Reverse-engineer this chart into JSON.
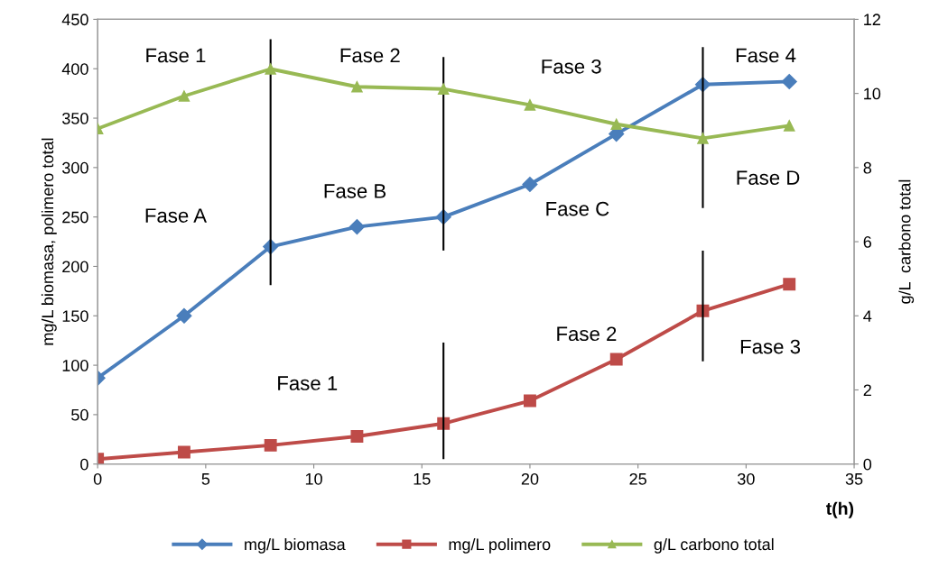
{
  "chart_data": {
    "type": "line",
    "xlabel": "t(h)",
    "ylabel": "mg/L biomasa, polimero total",
    "y2label": "g/L  carbono total",
    "x": [
      0,
      4,
      8,
      12,
      16,
      20,
      24,
      28,
      32
    ],
    "series": [
      {
        "name": "mg/L biomasa",
        "color": "#4a7ebb",
        "marker": "diamond",
        "values": [
          87,
          150,
          220,
          240,
          250,
          283,
          334,
          384,
          387
        ]
      },
      {
        "name": "mg/L polimero",
        "color": "#be4b48",
        "marker": "square",
        "values": [
          5,
          12,
          19,
          28,
          41,
          64,
          106,
          155,
          182
        ]
      },
      {
        "name": "g/L carbono total",
        "color": "#98b954",
        "marker": "triangle",
        "axis": "y2",
        "values": [
          9.05,
          9.93,
          10.66,
          10.18,
          10.12,
          9.69,
          9.17,
          8.79,
          9.13
        ]
      },
      {
        "type": "line",
        "color": "#000000",
        "marker": "none",
        "x": [
          8,
          8
        ],
        "values": [
          182,
          429
        ]
      },
      {
        "type": "line",
        "color": "#000000",
        "marker": "none",
        "x": [
          16,
          16
        ],
        "values": [
          217,
          411
        ]
      },
      {
        "type": "line",
        "color": "#000000",
        "marker": "none",
        "x": [
          16,
          16
        ],
        "values": [
          6,
          122
        ]
      },
      {
        "type": "line",
        "color": "#000000",
        "marker": "none",
        "x": [
          28,
          28
        ],
        "values": [
          260,
          421
        ]
      },
      {
        "type": "line",
        "color": "#000000",
        "marker": "none",
        "x": [
          28,
          28
        ],
        "values": [
          105,
          215
        ]
      }
    ],
    "xlim": [
      0,
      35
    ],
    "xticks": [
      0,
      5,
      10,
      15,
      20,
      25,
      30,
      35
    ],
    "ylim": [
      0,
      450
    ],
    "yticks": [
      0,
      50,
      100,
      150,
      200,
      250,
      300,
      350,
      400,
      450
    ],
    "y2lim": [
      0,
      12
    ],
    "y2ticks": [
      0,
      2,
      4,
      6,
      8,
      10,
      12
    ],
    "annotations": [
      "Fase 1",
      "Fase 2",
      "Fase 3",
      "Fase 4",
      "Fase A",
      "Fase B",
      "Fase C",
      "Fase D",
      "Fase 1",
      "Fase 2",
      "Fase 3"
    ],
    "grid": false,
    "legend": "bottom",
    "line_style": "solid"
  }
}
